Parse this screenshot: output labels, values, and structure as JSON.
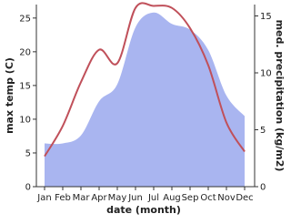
{
  "chart_data": {
    "type": "line-area",
    "categories": [
      "Jan",
      "Feb",
      "Mar",
      "Apr",
      "May",
      "Jun",
      "Jul",
      "Aug",
      "Sep",
      "Oct",
      "Nov",
      "Dec"
    ],
    "x_label": "date (month)",
    "y_label": "max temp (C)",
    "y2_label": "med. precipitation (kg/m2)",
    "series": [
      {
        "name": "max temp",
        "type": "line",
        "color": "#c0505a",
        "values": [
          4.5,
          9,
          15.5,
          20.3,
          18.3,
          26.5,
          26.8,
          26.5,
          23.5,
          18,
          9.5,
          5.2
        ]
      },
      {
        "name": "med. precipitation",
        "type": "area",
        "axis": "y2",
        "color": "#a9b5f0",
        "values": [
          3.8,
          3.8,
          4.5,
          7.5,
          9,
          14,
          15.3,
          14.3,
          13.8,
          12,
          8,
          6.2
        ]
      }
    ],
    "ylim": [
      0,
      27
    ],
    "yticks": [
      0,
      5,
      10,
      15,
      20,
      25
    ],
    "y2lim": [
      0,
      16
    ],
    "y2ticks": [
      0,
      5,
      10,
      15
    ]
  }
}
